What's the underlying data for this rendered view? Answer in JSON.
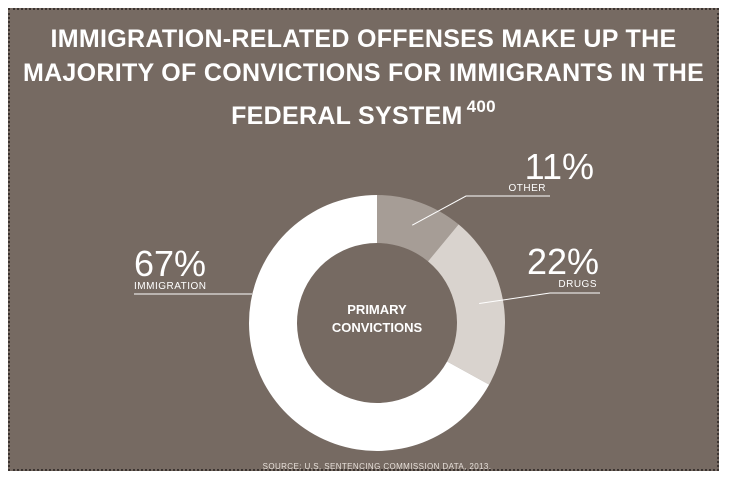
{
  "title_line1": "IMMIGRATION-RELATED OFFENSES MAKE UP THE",
  "title_line2": "MAJORITY OF CONVICTIONS FOR IMMIGRANTS IN THE",
  "title_line3": "FEDERAL SYSTEM",
  "footnote": "400",
  "source": "SOURCE: U.S. SENTENCING COMMISSION DATA, 2013.",
  "colors": {
    "background": "#766a62",
    "immigration": "#ffffff",
    "drugs": "#d9d3ce",
    "other": "#a69d96"
  },
  "chart_data": {
    "type": "pie",
    "style": "donut",
    "center_label": [
      "PRIMARY",
      "CONVICTIONS"
    ],
    "slices": [
      {
        "label": "OTHER",
        "value": 11,
        "value_label": "11%",
        "color": "#a69d96"
      },
      {
        "label": "DRUGS",
        "value": 22,
        "value_label": "22%",
        "color": "#d9d3ce"
      },
      {
        "label": "IMMIGRATION",
        "value": 67,
        "value_label": "67%",
        "color": "#ffffff"
      }
    ]
  }
}
